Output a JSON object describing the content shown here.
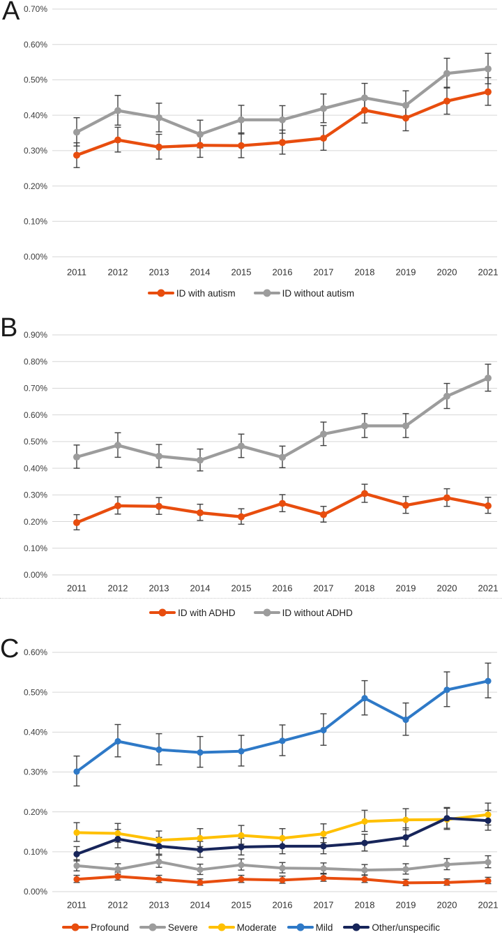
{
  "page": {
    "background": "#ffffff"
  },
  "panels": [
    {
      "letter": "A"
    },
    {
      "letter": "B"
    },
    {
      "letter": "C"
    }
  ],
  "style": {
    "grid_color": "#D6D6D6",
    "error_bar_color": "#3F3F3F",
    "tick_color": "#3C3C3C",
    "orange": "#E84D0E",
    "gray": "#9C9C9C",
    "gold": "#FFC000",
    "blue": "#2E79C7",
    "navy": "#17255A"
  },
  "chart_data": [
    {
      "type": "line",
      "panel": "A",
      "title": "",
      "xlabel": "",
      "ylabel": "",
      "grid": true,
      "legend_position": "bottom",
      "ylim": [
        0,
        0.7
      ],
      "ytick_step": 0.1,
      "y_format": "0.00%",
      "x": [
        "2011",
        "2012",
        "2013",
        "2014",
        "2015",
        "2016",
        "2017",
        "2018",
        "2019",
        "2020",
        "2021"
      ],
      "series": [
        {
          "name": "ID with autism",
          "color": "#E84D0E",
          "values": [
            0.287,
            0.33,
            0.31,
            0.315,
            0.314,
            0.323,
            0.335,
            0.414,
            0.392,
            0.44,
            0.466
          ],
          "ci_lower": [
            0.252,
            0.296,
            0.276,
            0.281,
            0.28,
            0.29,
            0.301,
            0.378,
            0.356,
            0.403,
            0.428
          ],
          "ci_upper": [
            0.322,
            0.366,
            0.346,
            0.35,
            0.35,
            0.358,
            0.371,
            0.452,
            0.43,
            0.479,
            0.506
          ]
        },
        {
          "name": "ID without autism",
          "color": "#9C9C9C",
          "values": [
            0.352,
            0.413,
            0.393,
            0.346,
            0.387,
            0.387,
            0.419,
            0.449,
            0.428,
            0.518,
            0.531
          ],
          "ci_lower": [
            0.313,
            0.372,
            0.353,
            0.308,
            0.347,
            0.349,
            0.379,
            0.41,
            0.389,
            0.477,
            0.489
          ],
          "ci_upper": [
            0.393,
            0.456,
            0.434,
            0.386,
            0.428,
            0.427,
            0.46,
            0.49,
            0.469,
            0.561,
            0.575
          ]
        }
      ]
    },
    {
      "type": "line",
      "panel": "B",
      "title": "",
      "xlabel": "",
      "ylabel": "",
      "grid": true,
      "legend_position": "bottom",
      "ylim": [
        0,
        0.9
      ],
      "ytick_step": 0.1,
      "y_format": "0.00%",
      "x": [
        "2011",
        "2012",
        "2013",
        "2014",
        "2015",
        "2016",
        "2017",
        "2018",
        "2019",
        "2020",
        "2021"
      ],
      "series": [
        {
          "name": "ID with ADHD",
          "color": "#E84D0E",
          "values": [
            0.196,
            0.259,
            0.257,
            0.233,
            0.218,
            0.268,
            0.226,
            0.305,
            0.261,
            0.289,
            0.259
          ],
          "ci_lower": [
            0.169,
            0.228,
            0.227,
            0.204,
            0.19,
            0.237,
            0.198,
            0.272,
            0.231,
            0.257,
            0.231
          ],
          "ci_upper": [
            0.226,
            0.293,
            0.29,
            0.265,
            0.248,
            0.301,
            0.257,
            0.34,
            0.294,
            0.323,
            0.291
          ]
        },
        {
          "name": "ID without ADHD",
          "color": "#9C9C9C",
          "values": [
            0.442,
            0.486,
            0.445,
            0.43,
            0.483,
            0.441,
            0.528,
            0.559,
            0.559,
            0.67,
            0.738
          ],
          "ci_lower": [
            0.4,
            0.441,
            0.403,
            0.39,
            0.44,
            0.402,
            0.485,
            0.515,
            0.515,
            0.624,
            0.689
          ],
          "ci_upper": [
            0.487,
            0.533,
            0.489,
            0.472,
            0.528,
            0.483,
            0.573,
            0.605,
            0.605,
            0.718,
            0.79
          ]
        }
      ]
    },
    {
      "type": "line",
      "panel": "C",
      "title": "",
      "xlabel": "",
      "ylabel": "",
      "grid": true,
      "legend_position": "bottom",
      "ylim": [
        0,
        0.6
      ],
      "ytick_step": 0.1,
      "y_format": "0.00%",
      "x": [
        "2011",
        "2012",
        "2013",
        "2014",
        "2015",
        "2016",
        "2017",
        "2018",
        "2019",
        "2020",
        "2021"
      ],
      "series": [
        {
          "name": "Profound",
          "color": "#E84D0E",
          "values": [
            0.031,
            0.038,
            0.031,
            0.023,
            0.031,
            0.029,
            0.034,
            0.031,
            0.022,
            0.023,
            0.027
          ],
          "ci_lower": [
            0.023,
            0.029,
            0.023,
            0.016,
            0.023,
            0.021,
            0.026,
            0.023,
            0.015,
            0.016,
            0.02
          ],
          "ci_upper": [
            0.041,
            0.049,
            0.041,
            0.032,
            0.041,
            0.039,
            0.044,
            0.041,
            0.031,
            0.032,
            0.036
          ]
        },
        {
          "name": "Severe",
          "color": "#9C9C9C",
          "values": [
            0.065,
            0.056,
            0.075,
            0.055,
            0.067,
            0.059,
            0.058,
            0.054,
            0.056,
            0.068,
            0.074
          ],
          "ci_lower": [
            0.052,
            0.044,
            0.061,
            0.043,
            0.054,
            0.047,
            0.046,
            0.042,
            0.044,
            0.055,
            0.06
          ],
          "ci_upper": [
            0.08,
            0.07,
            0.091,
            0.069,
            0.082,
            0.073,
            0.072,
            0.068,
            0.07,
            0.083,
            0.09
          ]
        },
        {
          "name": "Moderate",
          "color": "#FFC000",
          "values": [
            0.148,
            0.146,
            0.129,
            0.134,
            0.141,
            0.134,
            0.145,
            0.176,
            0.18,
            0.181,
            0.193
          ],
          "ci_lower": [
            0.126,
            0.124,
            0.108,
            0.113,
            0.119,
            0.113,
            0.123,
            0.151,
            0.155,
            0.156,
            0.167
          ],
          "ci_upper": [
            0.173,
            0.171,
            0.152,
            0.158,
            0.166,
            0.158,
            0.17,
            0.204,
            0.208,
            0.209,
            0.222
          ]
        },
        {
          "name": "Mild",
          "color": "#2E79C7",
          "values": [
            0.301,
            0.377,
            0.356,
            0.349,
            0.352,
            0.378,
            0.405,
            0.485,
            0.431,
            0.506,
            0.528
          ],
          "ci_lower": [
            0.265,
            0.338,
            0.318,
            0.312,
            0.315,
            0.341,
            0.367,
            0.443,
            0.392,
            0.464,
            0.486
          ],
          "ci_upper": [
            0.34,
            0.419,
            0.396,
            0.389,
            0.392,
            0.418,
            0.446,
            0.529,
            0.473,
            0.551,
            0.573
          ]
        },
        {
          "name": "Other/unspecific",
          "color": "#17255A",
          "values": [
            0.094,
            0.132,
            0.114,
            0.105,
            0.112,
            0.114,
            0.114,
            0.122,
            0.136,
            0.184,
            0.178
          ],
          "ci_lower": [
            0.077,
            0.11,
            0.094,
            0.086,
            0.092,
            0.095,
            0.095,
            0.102,
            0.114,
            0.159,
            0.154
          ],
          "ci_upper": [
            0.113,
            0.156,
            0.136,
            0.126,
            0.134,
            0.135,
            0.135,
            0.144,
            0.16,
            0.211,
            0.204
          ]
        }
      ]
    }
  ]
}
